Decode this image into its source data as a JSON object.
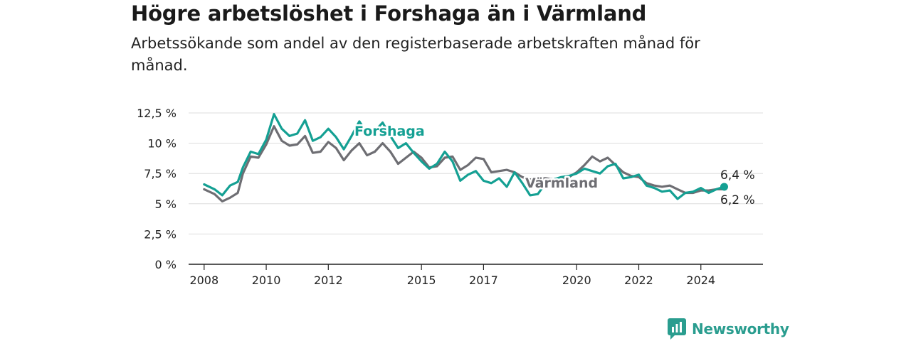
{
  "header": {
    "title": "Högre arbetslöshet i Forshaga än i Värmland",
    "subtitle": "Arbetssökande som andel av den registerbaserade arbetskraften månad för månad."
  },
  "brand": {
    "name": "Newsworthy"
  },
  "colors": {
    "forshaga": "#14a093",
    "varmland": "#6e6e73",
    "grid": "#dddddd",
    "axis": "#222222"
  },
  "chart_data": {
    "type": "line",
    "title": "Högre arbetslöshet i Forshaga än i Värmland",
    "subtitle": "Arbetssökande som andel av den registerbaserade arbetskraften månad för månad.",
    "xlabel": "",
    "ylabel": "",
    "ylim": [
      0,
      12.5
    ],
    "xlim": [
      "2007-06",
      "2025-12"
    ],
    "y_ticks": [
      0,
      2.5,
      5,
      7.5,
      10,
      12.5
    ],
    "y_tick_labels": [
      "0 %",
      "2,5 %",
      "5 %",
      "7,5 %",
      "10 %",
      "12,5 %"
    ],
    "x_ticks": [
      "2008",
      "2010",
      "2012",
      "2015",
      "2017",
      "2020",
      "2022",
      "2024"
    ],
    "grid": true,
    "legend": "inline labels",
    "end_labels": {
      "forshaga": "6,4 %",
      "varmland": "6,2 %"
    },
    "series": [
      {
        "name": "Forshaga",
        "points": [
          [
            "2008-01",
            6.6
          ],
          [
            "2008-05",
            6.2
          ],
          [
            "2008-08",
            5.7
          ],
          [
            "2008-11",
            6.5
          ],
          [
            "2009-02",
            6.8
          ],
          [
            "2009-04",
            8.0
          ],
          [
            "2009-07",
            9.3
          ],
          [
            "2009-10",
            9.1
          ],
          [
            "2010-01",
            10.3
          ],
          [
            "2010-04",
            12.4
          ],
          [
            "2010-07",
            11.2
          ],
          [
            "2010-10",
            10.6
          ],
          [
            "2011-01",
            10.8
          ],
          [
            "2011-04",
            11.9
          ],
          [
            "2011-07",
            10.2
          ],
          [
            "2011-10",
            10.5
          ],
          [
            "2012-01",
            11.2
          ],
          [
            "2012-04",
            10.5
          ],
          [
            "2012-07",
            9.5
          ],
          [
            "2012-10",
            10.6
          ],
          [
            "2013-01",
            11.8
          ],
          [
            "2013-04",
            10.8
          ],
          [
            "2013-07",
            11.0
          ],
          [
            "2013-10",
            11.7
          ],
          [
            "2014-01",
            10.6
          ],
          [
            "2014-04",
            9.6
          ],
          [
            "2014-07",
            10.0
          ],
          [
            "2014-10",
            9.2
          ],
          [
            "2015-01",
            8.5
          ],
          [
            "2015-04",
            7.9
          ],
          [
            "2015-07",
            8.3
          ],
          [
            "2015-10",
            9.3
          ],
          [
            "2016-01",
            8.5
          ],
          [
            "2016-04",
            6.9
          ],
          [
            "2016-07",
            7.4
          ],
          [
            "2016-10",
            7.7
          ],
          [
            "2017-01",
            6.9
          ],
          [
            "2017-04",
            6.7
          ],
          [
            "2017-07",
            7.1
          ],
          [
            "2017-10",
            6.4
          ],
          [
            "2018-01",
            7.6
          ],
          [
            "2018-04",
            6.7
          ],
          [
            "2018-07",
            5.7
          ],
          [
            "2018-10",
            5.8
          ],
          [
            "2019-01",
            6.7
          ],
          [
            "2019-04",
            7.0
          ],
          [
            "2019-07",
            7.2
          ],
          [
            "2019-10",
            7.3
          ],
          [
            "2020-01",
            7.5
          ],
          [
            "2020-04",
            7.9
          ],
          [
            "2020-07",
            7.7
          ],
          [
            "2020-10",
            7.5
          ],
          [
            "2021-01",
            8.1
          ],
          [
            "2021-04",
            8.3
          ],
          [
            "2021-07",
            7.1
          ],
          [
            "2021-10",
            7.2
          ],
          [
            "2022-01",
            7.4
          ],
          [
            "2022-04",
            6.5
          ],
          [
            "2022-07",
            6.3
          ],
          [
            "2022-10",
            6.0
          ],
          [
            "2023-01",
            6.1
          ],
          [
            "2023-04",
            5.4
          ],
          [
            "2023-07",
            5.9
          ],
          [
            "2023-10",
            6.0
          ],
          [
            "2024-01",
            6.3
          ],
          [
            "2024-04",
            5.9
          ],
          [
            "2024-07",
            6.2
          ],
          [
            "2024-10",
            6.4
          ]
        ]
      },
      {
        "name": "Värmland",
        "points": [
          [
            "2008-01",
            6.2
          ],
          [
            "2008-05",
            5.8
          ],
          [
            "2008-08",
            5.2
          ],
          [
            "2008-11",
            5.5
          ],
          [
            "2009-02",
            5.9
          ],
          [
            "2009-04",
            7.5
          ],
          [
            "2009-07",
            8.9
          ],
          [
            "2009-10",
            8.8
          ],
          [
            "2010-01",
            9.9
          ],
          [
            "2010-04",
            11.4
          ],
          [
            "2010-07",
            10.2
          ],
          [
            "2010-10",
            9.8
          ],
          [
            "2011-01",
            9.9
          ],
          [
            "2011-04",
            10.6
          ],
          [
            "2011-07",
            9.2
          ],
          [
            "2011-10",
            9.3
          ],
          [
            "2012-01",
            10.1
          ],
          [
            "2012-04",
            9.6
          ],
          [
            "2012-07",
            8.6
          ],
          [
            "2012-10",
            9.4
          ],
          [
            "2013-01",
            10.0
          ],
          [
            "2013-04",
            9.0
          ],
          [
            "2013-07",
            9.3
          ],
          [
            "2013-10",
            10.0
          ],
          [
            "2014-01",
            9.3
          ],
          [
            "2014-04",
            8.3
          ],
          [
            "2014-07",
            8.8
          ],
          [
            "2014-10",
            9.3
          ],
          [
            "2015-01",
            8.8
          ],
          [
            "2015-04",
            8.0
          ],
          [
            "2015-07",
            8.1
          ],
          [
            "2015-10",
            8.8
          ],
          [
            "2016-01",
            8.9
          ],
          [
            "2016-04",
            7.8
          ],
          [
            "2016-07",
            8.2
          ],
          [
            "2016-10",
            8.8
          ],
          [
            "2017-01",
            8.7
          ],
          [
            "2017-04",
            7.6
          ],
          [
            "2017-07",
            7.7
          ],
          [
            "2017-10",
            7.8
          ],
          [
            "2018-01",
            7.6
          ],
          [
            "2018-04",
            7.2
          ],
          [
            "2018-07",
            7.0
          ],
          [
            "2018-10",
            7.1
          ],
          [
            "2019-01",
            7.1
          ],
          [
            "2019-04",
            7.0
          ],
          [
            "2019-07",
            7.1
          ],
          [
            "2019-10",
            7.2
          ],
          [
            "2020-01",
            7.6
          ],
          [
            "2020-04",
            8.2
          ],
          [
            "2020-07",
            8.9
          ],
          [
            "2020-10",
            8.5
          ],
          [
            "2021-01",
            8.8
          ],
          [
            "2021-04",
            8.2
          ],
          [
            "2021-07",
            7.6
          ],
          [
            "2021-10",
            7.3
          ],
          [
            "2022-01",
            7.2
          ],
          [
            "2022-04",
            6.7
          ],
          [
            "2022-07",
            6.5
          ],
          [
            "2022-10",
            6.4
          ],
          [
            "2023-01",
            6.5
          ],
          [
            "2023-04",
            6.2
          ],
          [
            "2023-07",
            5.9
          ],
          [
            "2023-10",
            5.9
          ],
          [
            "2024-01",
            6.1
          ],
          [
            "2024-04",
            6.1
          ],
          [
            "2024-07",
            6.2
          ],
          [
            "2024-10",
            6.2
          ]
        ]
      }
    ]
  }
}
